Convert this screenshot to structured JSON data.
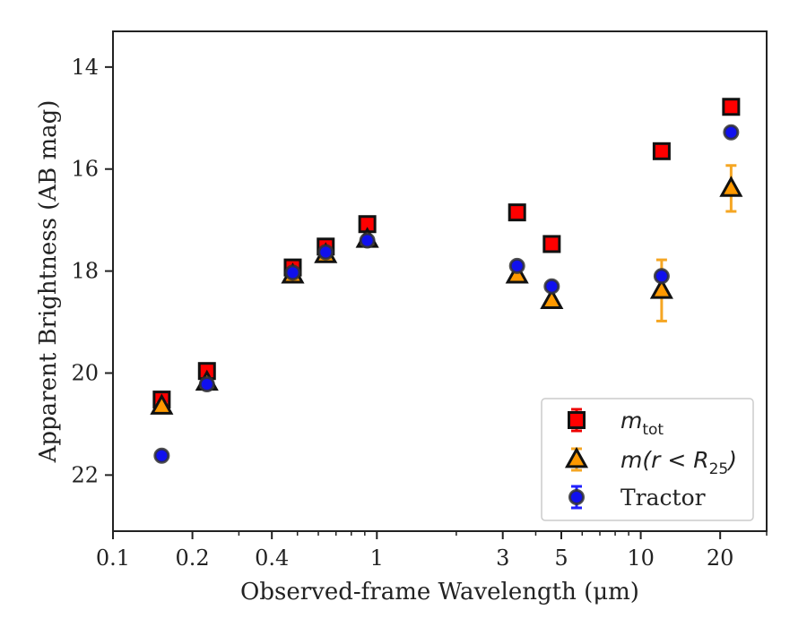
{
  "chart_data": {
    "type": "scatter",
    "xlabel": "Observed-frame Wavelength (μm)",
    "ylabel": "Apparent Brightness (AB mag)",
    "x_scale": "log",
    "y_inverted": true,
    "xlim": [
      0.1,
      30
    ],
    "ylim": [
      23.1,
      13.3
    ],
    "x_ticks": [
      {
        "value": 0.1,
        "label": "0.1"
      },
      {
        "value": 0.2,
        "label": "0.2"
      },
      {
        "value": 0.4,
        "label": "0.4"
      },
      {
        "value": 1,
        "label": "1"
      },
      {
        "value": 3,
        "label": "3"
      },
      {
        "value": 5,
        "label": "5"
      },
      {
        "value": 10,
        "label": "10"
      },
      {
        "value": 20,
        "label": "20"
      }
    ],
    "x_minor_ticks": [
      0.3,
      0.5,
      0.6,
      0.7,
      0.8,
      0.9,
      2,
      4,
      6,
      7,
      8,
      9,
      30
    ],
    "y_ticks": [
      {
        "value": 14,
        "label": "14"
      },
      {
        "value": 16,
        "label": "16"
      },
      {
        "value": 18,
        "label": "18"
      },
      {
        "value": 20,
        "label": "20"
      },
      {
        "value": 22,
        "label": "22"
      }
    ],
    "grid": false,
    "legend_position": "lower-right",
    "series": [
      {
        "name": "m_tot",
        "label_main": "m",
        "label_sub": "tot",
        "marker": "square",
        "color": "#ff0000",
        "error_color": "#ee0000",
        "points": [
          {
            "x": 0.153,
            "y": 20.52,
            "err": 0.05
          },
          {
            "x": 0.227,
            "y": 19.96,
            "err": 0.05
          },
          {
            "x": 0.48,
            "y": 17.93,
            "err": 0.03
          },
          {
            "x": 0.64,
            "y": 17.52,
            "err": 0.03
          },
          {
            "x": 0.92,
            "y": 17.08,
            "err": 0.03
          },
          {
            "x": 3.4,
            "y": 16.85,
            "err": 0.03
          },
          {
            "x": 4.6,
            "y": 17.47,
            "err": 0.03
          },
          {
            "x": 12.0,
            "y": 15.65,
            "err": 0.03
          },
          {
            "x": 22.0,
            "y": 14.78,
            "err": 0.03
          }
        ]
      },
      {
        "name": "m(r<R_25)",
        "label_main": "m(r < R",
        "label_sub": "25",
        "label_tail": ")",
        "marker": "triangle",
        "color": "#ff9900",
        "error_color": "#f5a623",
        "points": [
          {
            "x": 0.153,
            "y": 20.65,
            "err": 0.05
          },
          {
            "x": 0.227,
            "y": 20.18,
            "err": 0.05
          },
          {
            "x": 0.48,
            "y": 18.08,
            "err": 0.03
          },
          {
            "x": 0.64,
            "y": 17.68,
            "err": 0.03
          },
          {
            "x": 0.92,
            "y": 17.38,
            "err": 0.03
          },
          {
            "x": 3.4,
            "y": 18.08,
            "err": 0.03
          },
          {
            "x": 4.6,
            "y": 18.58,
            "err": 0.03
          },
          {
            "x": 12.0,
            "y": 18.38,
            "err": 0.6
          },
          {
            "x": 22.0,
            "y": 16.38,
            "err": 0.45
          }
        ]
      },
      {
        "name": "Tractor",
        "label_main": "Tractor",
        "marker": "circle",
        "color": "#1010ee",
        "error_color": "#2020ff",
        "points": [
          {
            "x": 0.153,
            "y": 21.62,
            "err": 0.06
          },
          {
            "x": 0.227,
            "y": 20.22,
            "err": 0.05
          },
          {
            "x": 0.48,
            "y": 18.03,
            "err": 0.03
          },
          {
            "x": 0.64,
            "y": 17.63,
            "err": 0.03
          },
          {
            "x": 0.92,
            "y": 17.4,
            "err": 0.03
          },
          {
            "x": 3.4,
            "y": 17.9,
            "err": 0.05
          },
          {
            "x": 4.6,
            "y": 18.3,
            "err": 0.05
          },
          {
            "x": 12.0,
            "y": 18.1,
            "err": 0.07
          },
          {
            "x": 22.0,
            "y": 15.28,
            "err": 0.05
          }
        ]
      }
    ]
  }
}
